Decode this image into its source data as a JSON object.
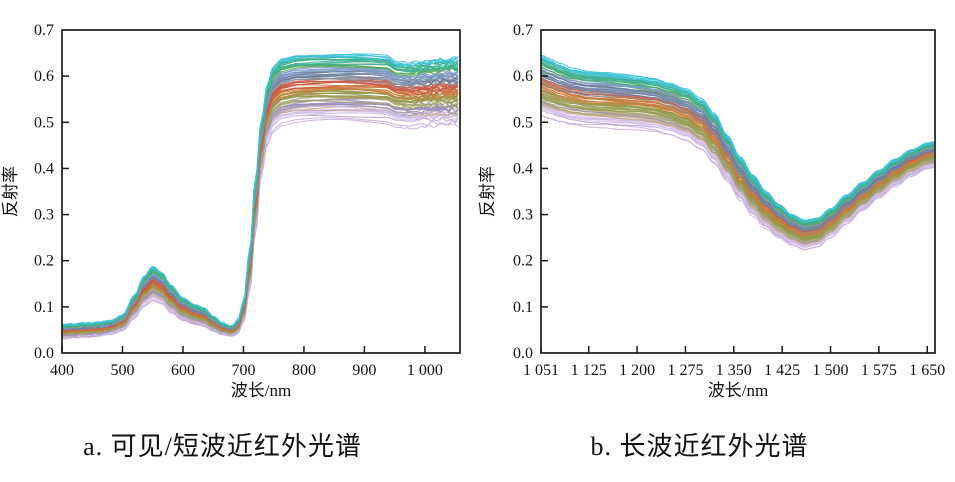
{
  "style": {
    "background": "#ffffff",
    "axis_color": "#1a1a1a",
    "text_color": "#111111",
    "curve_palette": [
      "#c9aede",
      "#bb9fd4",
      "#d3bfe8",
      "#c4ad94",
      "#9b8fba",
      "#a9a86c",
      "#8f9a4e",
      "#b18c3b",
      "#cc7a3e",
      "#c85b44",
      "#87909f",
      "#6d7f9e",
      "#7e9bc8",
      "#5aa85e",
      "#3db292",
      "#3ec1d6"
    ]
  },
  "chart_data": [
    {
      "id": "a",
      "type": "line",
      "title": "a. 可见/短波近红外光谱",
      "xlabel": "波长/nm",
      "ylabel": "反射率",
      "xlim": [
        400,
        1058
      ],
      "ylim": [
        0.0,
        0.7
      ],
      "grid": false,
      "legend": "none",
      "n_curves": 85,
      "noisy_tail_from": 940,
      "noisy_head_to": 480,
      "xticks": {
        "values": [
          400,
          500,
          600,
          700,
          800,
          900,
          1000
        ],
        "labels": [
          "400",
          "500",
          "600",
          "700",
          "800",
          "900",
          "1 000"
        ]
      },
      "yticks": {
        "values": [
          0.0,
          0.1,
          0.2,
          0.3,
          0.4,
          0.5,
          0.6,
          0.7
        ],
        "labels": [
          "0.0",
          "0.1",
          "0.2",
          "0.3",
          "0.4",
          "0.5",
          "0.6",
          "0.7"
        ]
      },
      "band": {
        "x": [
          400,
          420,
          440,
          460,
          480,
          500,
          520,
          535,
          550,
          565,
          580,
          600,
          620,
          635,
          650,
          665,
          680,
          690,
          700,
          710,
          720,
          730,
          740,
          750,
          765,
          790,
          820,
          850,
          880,
          905,
          935,
          955,
          975,
          1000,
          1030,
          1058
        ],
        "low": [
          0.03,
          0.032,
          0.034,
          0.036,
          0.04,
          0.048,
          0.075,
          0.1,
          0.112,
          0.105,
          0.085,
          0.068,
          0.06,
          0.056,
          0.046,
          0.039,
          0.036,
          0.04,
          0.065,
          0.13,
          0.26,
          0.39,
          0.455,
          0.48,
          0.492,
          0.497,
          0.499,
          0.5,
          0.5,
          0.499,
          0.497,
          0.489,
          0.487,
          0.489,
          0.491,
          0.489
        ],
        "high": [
          0.062,
          0.063,
          0.065,
          0.066,
          0.07,
          0.082,
          0.125,
          0.165,
          0.188,
          0.175,
          0.148,
          0.12,
          0.105,
          0.098,
          0.08,
          0.066,
          0.058,
          0.07,
          0.11,
          0.22,
          0.38,
          0.51,
          0.585,
          0.622,
          0.638,
          0.645,
          0.647,
          0.648,
          0.648,
          0.647,
          0.644,
          0.63,
          0.628,
          0.633,
          0.637,
          0.64
        ]
      }
    },
    {
      "id": "b",
      "type": "line",
      "title": "b. 长波近红外光谱",
      "xlabel": "波长/nm",
      "ylabel": "反射率",
      "xlim": [
        1051,
        1662
      ],
      "ylim": [
        0.0,
        0.7
      ],
      "grid": false,
      "legend": "none",
      "n_curves": 85,
      "xticks": {
        "values": [
          1051,
          1125,
          1200,
          1275,
          1350,
          1425,
          1500,
          1575,
          1650
        ],
        "labels": [
          "1 051",
          "1 125",
          "1 200",
          "1 275",
          "1 350",
          "1 425",
          "1 500",
          "1 575",
          "1 650"
        ]
      },
      "yticks": {
        "values": [
          0.0,
          0.1,
          0.2,
          0.3,
          0.4,
          0.5,
          0.6,
          0.7
        ],
        "labels": [
          "0.0",
          "0.1",
          "0.2",
          "0.3",
          "0.4",
          "0.5",
          "0.6",
          "0.7"
        ]
      },
      "band": {
        "x": [
          1051,
          1065,
          1080,
          1100,
          1125,
          1150,
          1175,
          1200,
          1225,
          1250,
          1275,
          1300,
          1320,
          1340,
          1360,
          1380,
          1400,
          1420,
          1440,
          1460,
          1480,
          1500,
          1525,
          1550,
          1575,
          1600,
          1625,
          1650,
          1662
        ],
        "low": [
          0.51,
          0.504,
          0.498,
          0.492,
          0.488,
          0.487,
          0.484,
          0.482,
          0.478,
          0.47,
          0.458,
          0.438,
          0.408,
          0.37,
          0.33,
          0.295,
          0.268,
          0.248,
          0.232,
          0.222,
          0.228,
          0.248,
          0.278,
          0.308,
          0.335,
          0.36,
          0.382,
          0.398,
          0.401
        ],
        "high": [
          0.645,
          0.636,
          0.626,
          0.616,
          0.61,
          0.608,
          0.604,
          0.6,
          0.595,
          0.585,
          0.572,
          0.55,
          0.518,
          0.472,
          0.425,
          0.385,
          0.35,
          0.322,
          0.3,
          0.288,
          0.292,
          0.312,
          0.342,
          0.37,
          0.396,
          0.42,
          0.44,
          0.455,
          0.458
        ]
      }
    }
  ]
}
